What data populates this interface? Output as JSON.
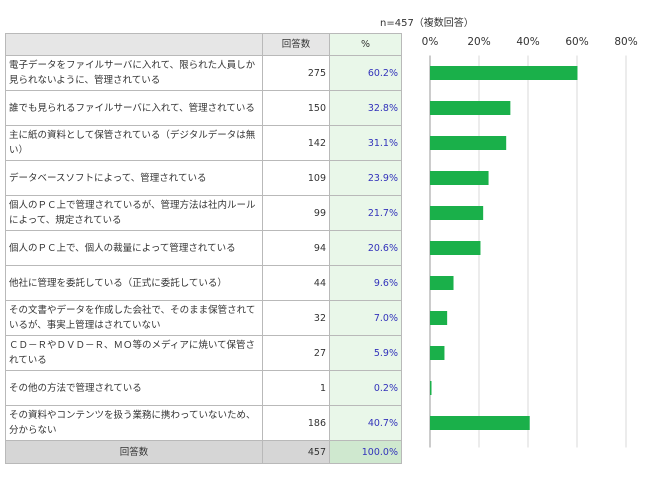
{
  "note": "n=457（複数回答）",
  "table": {
    "header": {
      "label": "",
      "count": "回答数",
      "percent": "%"
    },
    "rows": [
      {
        "label": "電子データをファイルサーバに入れて、限られた人員しか見られないように、管理されている",
        "count": "275",
        "percent": "60.2%"
      },
      {
        "label": "誰でも見られるファイルサーバに入れて、管理されている",
        "count": "150",
        "percent": "32.8%"
      },
      {
        "label": "主に紙の資料として保管されている（デジタルデータは無い）",
        "count": "142",
        "percent": "31.1%"
      },
      {
        "label": "データベースソフトによって、管理されている",
        "count": "109",
        "percent": "23.9%"
      },
      {
        "label": "個人のＰＣ上で管理されているが、管理方法は社内ルールによって、規定されている",
        "count": "99",
        "percent": "21.7%"
      },
      {
        "label": "個人のＰＣ上で、個人の裁量によって管理されている",
        "count": "94",
        "percent": "20.6%"
      },
      {
        "label": "他社に管理を委託している（正式に委託している）",
        "count": "44",
        "percent": "9.6%"
      },
      {
        "label": "その文書やデータを作成した会社で、そのまま保管されているが、事実上管理はされていない",
        "count": "32",
        "percent": "7.0%"
      },
      {
        "label": "ＣＤ－ＲやＤＶＤ－Ｒ、ＭＯ等のメディアに焼いて保管されている",
        "count": "27",
        "percent": "5.9%"
      },
      {
        "label": "その他の方法で管理されている",
        "count": "1",
        "percent": "0.2%"
      },
      {
        "label": "その資料やコンテンツを扱う業務に携わっていないため、分からない",
        "count": "186",
        "percent": "40.7%"
      }
    ],
    "total": {
      "label": "回答数",
      "count": "457",
      "percent": "100.0%"
    }
  },
  "colors": {
    "bar": "#1ab04a",
    "grid": "#d9d9d9",
    "axis": "#9a9a9a"
  },
  "chart_data": {
    "type": "bar",
    "orientation": "horizontal",
    "categories": [
      "電子データをファイルサーバに入れて、限られた人員しか見られないように、管理されている",
      "誰でも見られるファイルサーバに入れて、管理されている",
      "主に紙の資料として保管されている（デジタルデータは無い）",
      "データベースソフトによって、管理されている",
      "個人のＰＣ上で管理されているが、管理方法は社内ルールによって、規定されている",
      "個人のＰＣ上で、個人の裁量によって管理されている",
      "他社に管理を委託している（正式に委託している）",
      "その文書やデータを作成した会社で、そのまま保管されているが、事実上管理はされていない",
      "ＣＤ－ＲやＤＶＤ－Ｒ、ＭＯ等のメディアに焼いて保管されている",
      "その他の方法で管理されている",
      "その資料やコンテンツを扱う業務に携わっていないため、分からない"
    ],
    "values": [
      60.2,
      32.8,
      31.1,
      23.9,
      21.7,
      20.6,
      9.6,
      7.0,
      5.9,
      0.2,
      40.7
    ],
    "xlim": [
      0,
      80
    ],
    "ticks": [
      "0%",
      "20%",
      "40%",
      "60%",
      "80%"
    ],
    "title": "",
    "xlabel": "",
    "ylabel": "",
    "grid": true,
    "legend": "none"
  }
}
